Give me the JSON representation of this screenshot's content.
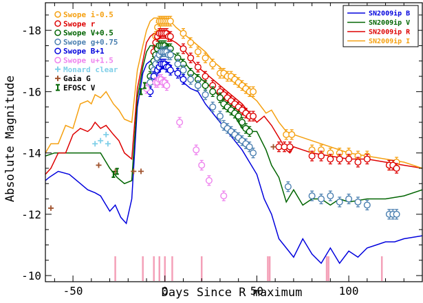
{
  "chart_data": {
    "type": "line",
    "xlabel": "Days Since R maximum",
    "ylabel": "Absolute Magnitude",
    "xlim": [
      -65,
      140
    ],
    "ylim": [
      -9.8,
      -18.9
    ],
    "xticks": [
      -50,
      0,
      50,
      100
    ],
    "yticks": [
      -10,
      -12,
      -14,
      -16,
      -18
    ],
    "models": [
      {
        "name": "SN2009ip B",
        "color": "#0000dd",
        "x": [
          -65,
          -63,
          -58,
          -52,
          -46,
          -42,
          -38,
          -35,
          -33,
          -30,
          -27,
          -24,
          -21,
          -18,
          -15,
          -12,
          -10,
          -8,
          -6,
          -4,
          -2,
          0,
          2,
          4,
          7,
          10,
          14,
          18,
          22,
          26,
          30,
          34,
          38,
          42,
          46,
          50,
          54,
          58,
          62,
          66,
          70,
          75,
          80,
          85,
          90,
          95,
          100,
          105,
          110,
          115,
          120,
          125,
          130,
          140
        ],
        "y": [
          -13.1,
          -13.2,
          -13.4,
          -13.3,
          -13.0,
          -12.8,
          -12.7,
          -12.6,
          -12.4,
          -12.1,
          -12.3,
          -11.9,
          -11.7,
          -12.5,
          -15.5,
          -16.6,
          -16.9,
          -17.0,
          -17.0,
          -16.9,
          -16.9,
          -16.8,
          -16.8,
          -16.7,
          -16.6,
          -16.3,
          -16.1,
          -16.0,
          -15.6,
          -15.3,
          -15.0,
          -14.7,
          -14.4,
          -14.1,
          -13.7,
          -13.3,
          -12.5,
          -12.0,
          -11.2,
          -10.9,
          -10.6,
          -11.2,
          -10.7,
          -10.4,
          -10.9,
          -10.4,
          -10.8,
          -10.6,
          -10.9,
          -11.0,
          -11.1,
          -11.1,
          -11.2,
          -11.3
        ]
      },
      {
        "name": "SN2009ip V",
        "color": "#006400",
        "x": [
          -65,
          -60,
          -55,
          -50,
          -45,
          -40,
          -37,
          -35,
          -33,
          -30,
          -26,
          -22,
          -18,
          -15,
          -12,
          -10,
          -8,
          -6,
          -4,
          -2,
          0,
          3,
          6,
          10,
          14,
          18,
          22,
          26,
          30,
          34,
          38,
          42,
          46,
          50,
          55,
          58,
          62,
          66,
          70,
          75,
          80,
          85,
          90,
          95,
          100,
          110,
          120,
          130,
          140
        ],
        "y": [
          -13.9,
          -14.0,
          -14.0,
          -14.0,
          -14.0,
          -14.0,
          -14.0,
          -14.0,
          -13.8,
          -13.5,
          -13.2,
          -13.0,
          -13.1,
          -15.8,
          -16.8,
          -17.3,
          -17.5,
          -17.5,
          -17.4,
          -17.5,
          -17.5,
          -17.3,
          -17.2,
          -17.0,
          -16.7,
          -16.5,
          -16.3,
          -16.1,
          -15.8,
          -15.5,
          -15.2,
          -14.8,
          -14.7,
          -14.7,
          -14.1,
          -13.6,
          -13.2,
          -12.4,
          -12.8,
          -12.3,
          -12.5,
          -12.5,
          -12.3,
          -12.5,
          -12.4,
          -12.5,
          -12.5,
          -12.6,
          -12.8
        ]
      },
      {
        "name": "SN2009ip R",
        "color": "#dd0000",
        "x": [
          -65,
          -62,
          -58,
          -54,
          -50,
          -46,
          -42,
          -40,
          -38,
          -35,
          -32,
          -28,
          -25,
          -22,
          -18,
          -15,
          -12,
          -10,
          -8,
          -6,
          -4,
          -2,
          0,
          3,
          6,
          10,
          14,
          18,
          22,
          26,
          30,
          34,
          38,
          42,
          46,
          50,
          54,
          58,
          62,
          64,
          66,
          68,
          70,
          75,
          80,
          90,
          100,
          110,
          120,
          130,
          140
        ],
        "y": [
          -13.3,
          -13.5,
          -14.0,
          -14.0,
          -14.6,
          -14.8,
          -14.7,
          -14.8,
          -15.0,
          -14.8,
          -14.9,
          -14.6,
          -14.4,
          -14.0,
          -13.8,
          -16.1,
          -17.0,
          -17.6,
          -17.8,
          -17.9,
          -17.9,
          -17.9,
          -17.9,
          -17.7,
          -17.6,
          -17.4,
          -17.1,
          -16.8,
          -16.6,
          -16.4,
          -16.2,
          -16.0,
          -15.8,
          -15.6,
          -15.3,
          -15.0,
          -15.2,
          -14.9,
          -14.5,
          -14.3,
          -14.1,
          -14.0,
          -14.2,
          -14.1,
          -14.0,
          -13.9,
          -13.8,
          -13.8,
          -13.7,
          -13.6,
          -13.5
        ]
      },
      {
        "name": "SN2009ip I",
        "color": "#f5a010",
        "x": [
          -65,
          -62,
          -58,
          -54,
          -50,
          -46,
          -42,
          -40,
          -38,
          -35,
          -32,
          -28,
          -25,
          -22,
          -18,
          -15,
          -12,
          -10,
          -8,
          -6,
          -4,
          -2,
          0,
          3,
          6,
          10,
          14,
          18,
          22,
          26,
          30,
          34,
          38,
          42,
          46,
          50,
          55,
          58,
          62,
          66,
          70,
          80,
          90,
          100,
          110,
          120,
          130,
          140
        ],
        "y": [
          -14.0,
          -14.3,
          -14.3,
          -14.9,
          -14.8,
          -15.6,
          -15.7,
          -15.6,
          -15.9,
          -15.8,
          -16.0,
          -15.6,
          -15.4,
          -15.1,
          -15.0,
          -16.7,
          -17.5,
          -18.0,
          -18.3,
          -18.4,
          -18.4,
          -18.4,
          -18.4,
          -18.3,
          -18.1,
          -17.9,
          -17.7,
          -17.5,
          -17.3,
          -17.0,
          -16.8,
          -16.5,
          -16.3,
          -16.1,
          -15.9,
          -15.7,
          -15.3,
          -15.4,
          -15.0,
          -14.7,
          -14.6,
          -14.4,
          -14.2,
          -14.0,
          -13.9,
          -13.8,
          -13.7,
          -13.5
        ]
      }
    ],
    "series": [
      {
        "name": "Swope i-0.5",
        "color": "#f5a010",
        "marker": "circle",
        "x": [
          -5,
          -4,
          -3,
          -2,
          -1,
          0,
          1,
          2,
          3,
          10,
          14,
          18,
          22,
          26,
          30,
          32,
          34,
          36,
          38,
          40,
          42,
          44,
          46,
          48,
          66,
          69,
          80,
          85,
          90,
          95,
          100,
          105,
          110,
          122,
          126
        ],
        "y": [
          -17.8,
          -18.1,
          -18.3,
          -18.3,
          -18.3,
          -18.3,
          -18.3,
          -18.3,
          -18.3,
          -17.9,
          -17.6,
          -17.3,
          -17.1,
          -16.9,
          -16.6,
          -16.6,
          -16.5,
          -16.5,
          -16.4,
          -16.3,
          -16.2,
          -16.1,
          -16.0,
          -16.0,
          -14.6,
          -14.6,
          -14.1,
          -14.1,
          -14.0,
          -14.0,
          -14.0,
          -13.9,
          -13.9,
          -13.6,
          -13.7
        ]
      },
      {
        "name": "Swope r",
        "color": "#dd0000",
        "marker": "circle",
        "x": [
          -6,
          -5,
          -4,
          -3,
          -2,
          -1,
          0,
          1,
          2,
          3,
          10,
          14,
          18,
          22,
          26,
          30,
          32,
          34,
          36,
          38,
          40,
          42,
          44,
          46,
          48,
          62,
          65,
          68,
          80,
          85,
          90,
          95,
          100,
          105,
          110,
          122,
          124,
          126
        ],
        "y": [
          -17.3,
          -17.6,
          -17.8,
          -17.9,
          -17.9,
          -17.9,
          -17.9,
          -17.9,
          -17.8,
          -17.8,
          -17.4,
          -17.1,
          -16.8,
          -16.5,
          -16.2,
          -16.0,
          -15.9,
          -15.8,
          -15.7,
          -15.6,
          -15.5,
          -15.4,
          -15.3,
          -15.2,
          -15.2,
          -14.2,
          -14.2,
          -14.2,
          -13.9,
          -13.9,
          -13.8,
          -13.8,
          -13.8,
          -13.7,
          -13.8,
          -13.6,
          -13.6,
          -13.5
        ]
      },
      {
        "name": "Swope V+0.5",
        "color": "#006400",
        "marker": "circle",
        "x": [
          -8,
          -7,
          -6,
          -5,
          -4,
          -3,
          -2,
          -1,
          0,
          1,
          2,
          3,
          7,
          10,
          14,
          18,
          22,
          26,
          30,
          32,
          34,
          36,
          38,
          40,
          42,
          44,
          46
        ],
        "y": [
          -16.5,
          -16.8,
          -17.0,
          -17.2,
          -17.4,
          -17.5,
          -17.5,
          -17.5,
          -17.5,
          -17.4,
          -17.4,
          -17.4,
          -17.1,
          -16.9,
          -16.6,
          -16.4,
          -16.2,
          -16.0,
          -15.8,
          -15.6,
          -15.5,
          -15.4,
          -15.3,
          -15.2,
          -15.0,
          -14.8,
          -14.7
        ]
      },
      {
        "name": "Swope g+0.75",
        "color": "#4a7fb0",
        "marker": "circle",
        "x": [
          -8,
          -6,
          -5,
          -4,
          -3,
          -2,
          -1,
          0,
          1,
          2,
          3,
          7,
          10,
          14,
          18,
          22,
          26,
          30,
          32,
          34,
          36,
          38,
          40,
          42,
          44,
          46,
          48,
          67,
          80,
          85,
          90,
          95,
          100,
          105,
          110,
          122,
          124,
          126
        ],
        "y": [
          -16.3,
          -16.7,
          -16.9,
          -17.1,
          -17.2,
          -17.3,
          -17.3,
          -17.3,
          -17.3,
          -17.2,
          -17.2,
          -16.9,
          -16.7,
          -16.4,
          -16.2,
          -15.9,
          -15.5,
          -15.2,
          -14.9,
          -14.8,
          -14.7,
          -14.6,
          -14.5,
          -14.4,
          -14.3,
          -14.2,
          -14.0,
          -12.9,
          -12.6,
          -12.5,
          -12.6,
          -12.4,
          -12.5,
          -12.4,
          -12.3,
          -12.0,
          -12.0,
          -12.0
        ]
      },
      {
        "name": "Swope B+1",
        "color": "#0000dd",
        "marker": "circle",
        "x": [
          -8,
          -6,
          -4,
          -3,
          -2,
          -1,
          0,
          1,
          2,
          3,
          7,
          10
        ],
        "y": [
          -16.0,
          -16.5,
          -16.7,
          -16.8,
          -16.9,
          -16.9,
          -16.9,
          -16.8,
          -16.8,
          -16.7,
          -16.6,
          -16.4
        ]
      },
      {
        "name": "Swope u+1.5",
        "color": "#ee82ee",
        "marker": "circle",
        "x": [
          -10,
          -5,
          -4,
          -3,
          -2,
          -1,
          0,
          1,
          8,
          17,
          20,
          24,
          32
        ],
        "y": [
          -16.1,
          -16.3,
          -16.3,
          -16.4,
          -16.4,
          -16.3,
          -16.3,
          -16.2,
          -15.0,
          -14.1,
          -13.6,
          -13.1,
          -12.6
        ]
      },
      {
        "name": "Monard clear",
        "color": "#7fcfe8",
        "marker": "plus",
        "x": [
          -38,
          -35,
          -32,
          -31
        ],
        "y": [
          -14.3,
          -14.4,
          -14.6,
          -14.3
        ]
      },
      {
        "name": "Gaia G",
        "color": "#a0522d",
        "marker": "plus",
        "x": [
          -62,
          -36,
          -27,
          -17,
          -13,
          59
        ],
        "y": [
          -12.2,
          -13.6,
          -13.4,
          -13.4,
          -13.4,
          -14.2
        ]
      },
      {
        "name": "EFOSC V",
        "color": "#006400",
        "marker": "bar",
        "x": [
          -28,
          -26,
          -13,
          -11
        ],
        "y": [
          -13.3,
          -13.4,
          -16.0,
          -16.2
        ]
      }
    ],
    "spectra_epochs": [
      -27,
      -12,
      -6,
      -3,
      0,
      4,
      20,
      56,
      57,
      88,
      89,
      118
    ]
  }
}
